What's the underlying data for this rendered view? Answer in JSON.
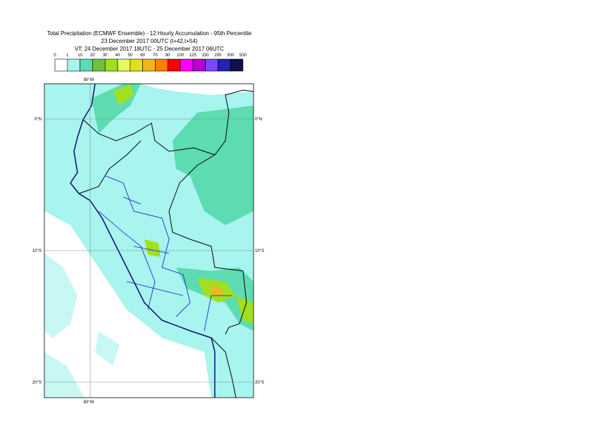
{
  "header": {
    "title_lines": [
      "Total Precipitation (ECMWF Ensemble) - 12 Hourly Accumulation - 95th Percentile",
      "23 December 2017 00UTC (t+42,t+54)",
      "VT: 24 December 2017 18UTC - 25 December 2017 06UTC"
    ]
  },
  "legend": {
    "labels": [
      "0",
      "1",
      "10",
      "20",
      "30",
      "40",
      "50",
      "60",
      "70",
      "80",
      "100",
      "125",
      "150",
      "200",
      "300",
      "500"
    ],
    "colors": [
      "#ffffff",
      "#a8f4ee",
      "#5cdcb0",
      "#6cc43c",
      "#a0e020",
      "#e8f860",
      "#e0e020",
      "#f0b420",
      "#ff8000",
      "#ff0000",
      "#ff00ff",
      "#b400d0",
      "#7848ff",
      "#2424b0",
      "#10104c"
    ]
  },
  "map": {
    "lat_labels": [
      "0°N",
      "10°S",
      "20°S"
    ],
    "lon_labels": [
      "80°W"
    ]
  }
}
